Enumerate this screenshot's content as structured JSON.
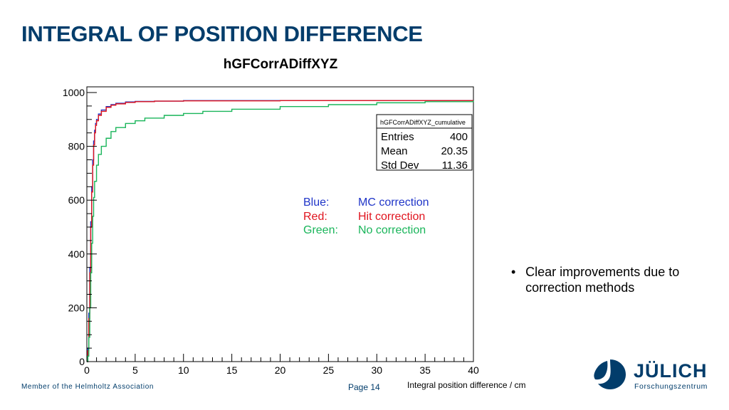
{
  "slide": {
    "title": "INTEGRAL OF POSITION DIFFERENCE",
    "footer_member": "Member of the Helmholtz Association",
    "page": "Page 14"
  },
  "bullets": [
    "Clear improvements due to correction methods"
  ],
  "legend_note": [
    {
      "key": "Blue:",
      "label": "MC correction",
      "color": "#1f35c8"
    },
    {
      "key": "Red:",
      "label": "Hit correction",
      "color": "#e0141e"
    },
    {
      "key": "Green:",
      "label": "No correction",
      "color": "#19b55a"
    }
  ],
  "logo": {
    "wordmark": "JÜLICH",
    "subtitle": "Forschungszentrum"
  },
  "chart_data": {
    "type": "line",
    "title": "hGFCorrADiffXYZ",
    "xlabel": "Integral position difference / cm",
    "ylabel": "",
    "xlim": [
      0,
      40
    ],
    "ylim": [
      0,
      1000
    ],
    "xticks": [
      0,
      5,
      10,
      15,
      20,
      25,
      30,
      35,
      40
    ],
    "yticks": [
      0,
      200,
      400,
      600,
      800,
      1000
    ],
    "stats_box": {
      "name": "hGFCorrADiffXYZ_cumulative",
      "rows": [
        {
          "label": "Entries",
          "value": "400"
        },
        {
          "label": "Mean",
          "value": "20.35"
        },
        {
          "label": "Std Dev",
          "value": "11.36"
        }
      ]
    },
    "series": [
      {
        "name": "MC correction",
        "color": "#1f35c8",
        "x": [
          0,
          0.1,
          0.2,
          0.3,
          0.4,
          0.5,
          0.6,
          0.7,
          0.8,
          0.9,
          1.0,
          1.2,
          1.5,
          2.0,
          2.5,
          3.0,
          4.0,
          5.0,
          7.0,
          10.0,
          20.0,
          30.0,
          40.0
        ],
        "y": [
          0,
          50,
          180,
          350,
          520,
          650,
          750,
          820,
          860,
          885,
          900,
          920,
          935,
          948,
          955,
          960,
          965,
          967,
          968,
          970,
          970,
          970,
          970
        ]
      },
      {
        "name": "Hit correction",
        "color": "#e0141e",
        "x": [
          0,
          0.1,
          0.2,
          0.3,
          0.4,
          0.5,
          0.6,
          0.7,
          0.8,
          0.9,
          1.0,
          1.2,
          1.5,
          2.0,
          2.5,
          3.0,
          4.0,
          5.0,
          7.0,
          10.0,
          20.0,
          30.0,
          40.0
        ],
        "y": [
          0,
          40,
          160,
          330,
          500,
          630,
          730,
          805,
          850,
          878,
          895,
          915,
          930,
          945,
          953,
          958,
          963,
          966,
          968,
          969,
          970,
          970,
          970
        ]
      },
      {
        "name": "No correction",
        "color": "#19b55a",
        "x": [
          0,
          0.1,
          0.2,
          0.3,
          0.4,
          0.5,
          0.6,
          0.7,
          0.8,
          1.0,
          1.2,
          1.5,
          2.0,
          2.5,
          3.0,
          4.0,
          5.0,
          6.0,
          8.0,
          10.0,
          12.0,
          15.0,
          20.0,
          25.0,
          30.0,
          35.0,
          40.0
        ],
        "y": [
          0,
          20,
          90,
          200,
          330,
          440,
          540,
          610,
          670,
          730,
          770,
          800,
          830,
          855,
          870,
          885,
          895,
          905,
          915,
          922,
          930,
          938,
          948,
          955,
          962,
          966,
          970
        ]
      }
    ]
  }
}
